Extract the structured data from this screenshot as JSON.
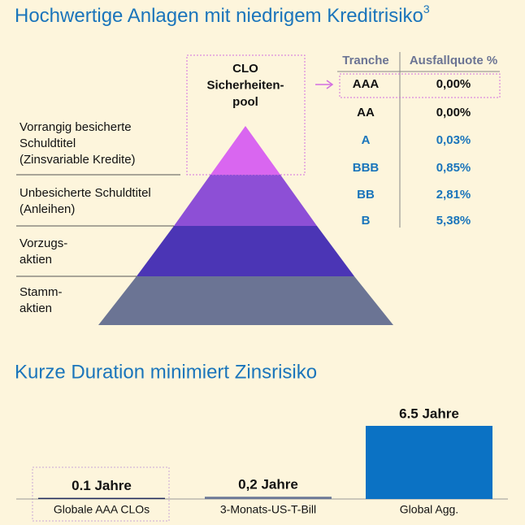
{
  "header": {
    "title": "Hochwertige Anlagen mit niedrigem Kreditrisiko",
    "title_sup": "3"
  },
  "pyramid": {
    "apex_label": [
      "CLO",
      "Sicherheiten-",
      "pool"
    ],
    "layers": [
      {
        "label": [
          "Vorrangig besicherte",
          "Schuldtitel",
          "(Zinsvariable Kredite)"
        ]
      },
      {
        "label": [
          "Unbesicherte Schuldtitel",
          "(Anleihen)"
        ]
      },
      {
        "label": [
          "Vorzugs-",
          "aktien"
        ]
      },
      {
        "label": [
          "Stamm-",
          "aktien"
        ]
      }
    ]
  },
  "table": {
    "columns": [
      "Tranche",
      "Ausfallquote %"
    ],
    "rows": [
      [
        "AAA",
        "0,00%"
      ],
      [
        "AA",
        "0,00%"
      ],
      [
        "A",
        "0,03%"
      ],
      [
        "BBB",
        "0,85%"
      ],
      [
        "BB",
        "2,81%"
      ],
      [
        "B",
        "5,38%"
      ]
    ]
  },
  "chart_data": {
    "type": "bar",
    "title": "Kurze Duration minimiert Zinsrisiko",
    "categories": [
      "Globale AAA CLOs",
      "3-Monats-US-T-Bill",
      "Global Agg."
    ],
    "values": [
      0.1,
      0.2,
      6.5
    ],
    "value_labels": [
      "0.1 Jahre",
      "0,2 Jahre",
      "6.5 Jahre"
    ],
    "colors": [
      "#1f2a5c",
      "#6b7896",
      "#0b72c4"
    ]
  }
}
